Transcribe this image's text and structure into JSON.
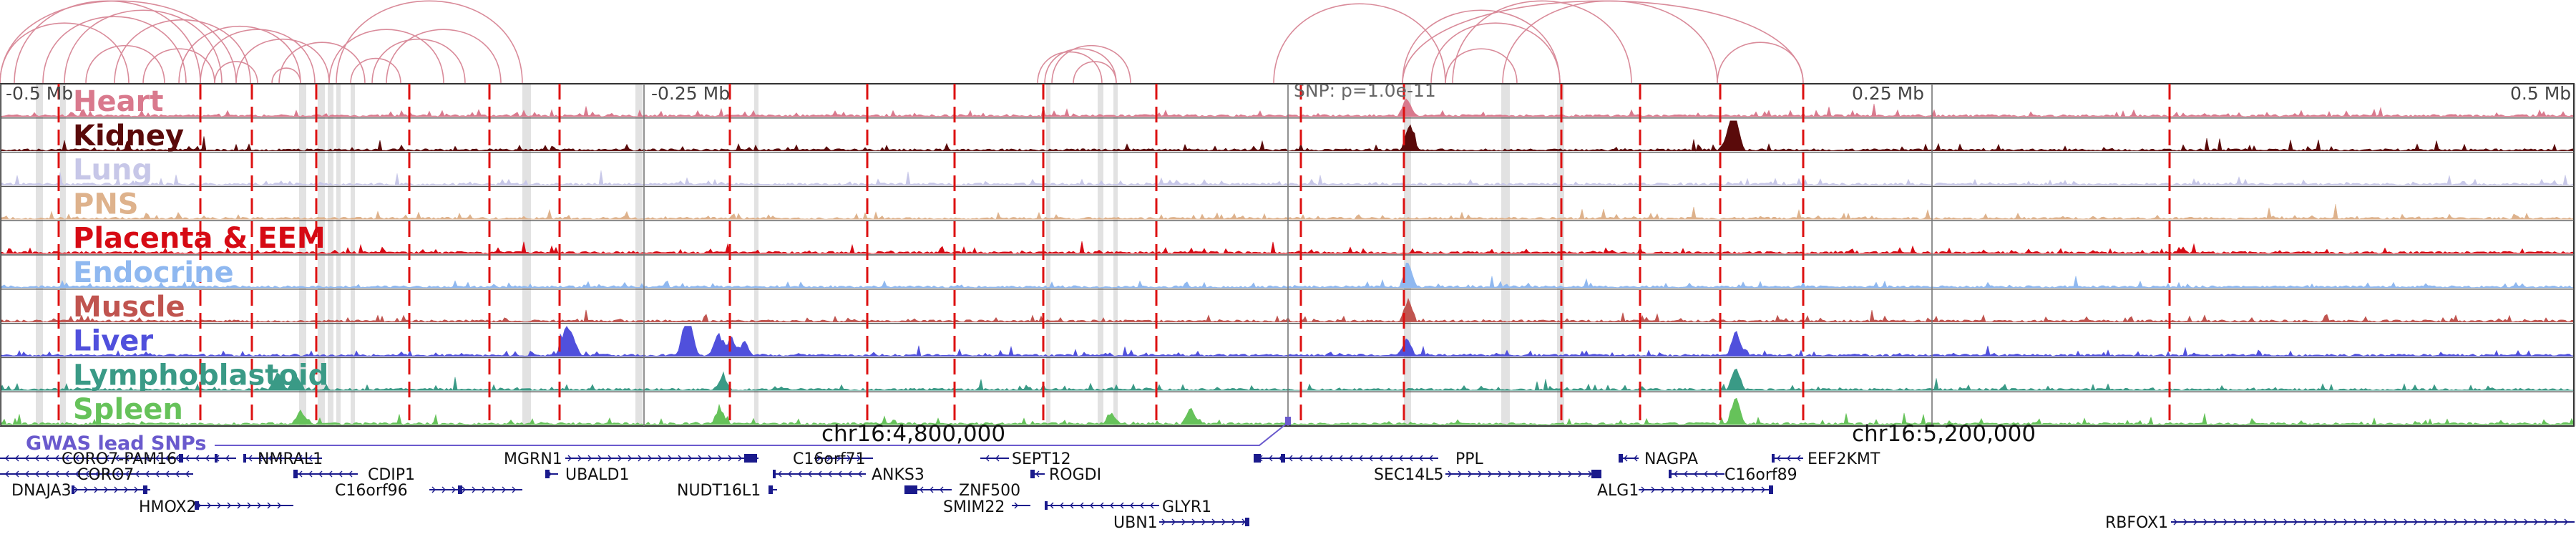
{
  "axis": {
    "top_labels": [
      "-0.5 Mb",
      "-0.25 Mb",
      "0.25 Mb",
      "0.5 Mb"
    ],
    "snp_label": "SNP: p=1.0e-11",
    "chrom_labels": [
      "chr16:4,800,000",
      "chr16:5,200,000"
    ],
    "gwas_label": "GWAS lead SNPs"
  },
  "tracks": [
    {
      "name": "Heart",
      "color": "#d9798d"
    },
    {
      "name": "Kidney",
      "color": "#5a0a0a"
    },
    {
      "name": "Lung",
      "color": "#c7c7e8"
    },
    {
      "name": "PNS",
      "color": "#deb28c"
    },
    {
      "name": "Placenta & EEM",
      "color": "#d60a14"
    },
    {
      "name": "Endocrine",
      "color": "#8fb8f0"
    },
    {
      "name": "Muscle",
      "color": "#c0544f"
    },
    {
      "name": "Liver",
      "color": "#5050dc"
    },
    {
      "name": "Lymphoblastoid",
      "color": "#3a9a86"
    },
    {
      "name": "Spleen",
      "color": "#66c25a"
    }
  ],
  "genes": [
    {
      "name": "CORO7-PAM16"
    },
    {
      "name": "NMRAL1"
    },
    {
      "name": "CORO7"
    },
    {
      "name": "CDIP1"
    },
    {
      "name": "DNAJA3"
    },
    {
      "name": "C16orf96"
    },
    {
      "name": "HMOX2"
    },
    {
      "name": "MGRN1"
    },
    {
      "name": "UBALD1"
    },
    {
      "name": "NUDT16L1"
    },
    {
      "name": "C16orf71"
    },
    {
      "name": "ANKS3"
    },
    {
      "name": "SEPT12"
    },
    {
      "name": "ROGDI"
    },
    {
      "name": "ZNF500"
    },
    {
      "name": "SMIM22"
    },
    {
      "name": "GLYR1"
    },
    {
      "name": "UBN1"
    },
    {
      "name": "PPL"
    },
    {
      "name": "SEC14L5"
    },
    {
      "name": "NAGPA"
    },
    {
      "name": "ALG1"
    },
    {
      "name": "C16orf89"
    },
    {
      "name": "EEF2KMT"
    },
    {
      "name": "RBFOX1"
    }
  ],
  "colors": {
    "arc": "#d98b9a",
    "marker_line": "#dd1111",
    "highlight": "#dddddd",
    "gene_blue": "#1a1a8c",
    "gwas": "#6a5acd"
  }
}
